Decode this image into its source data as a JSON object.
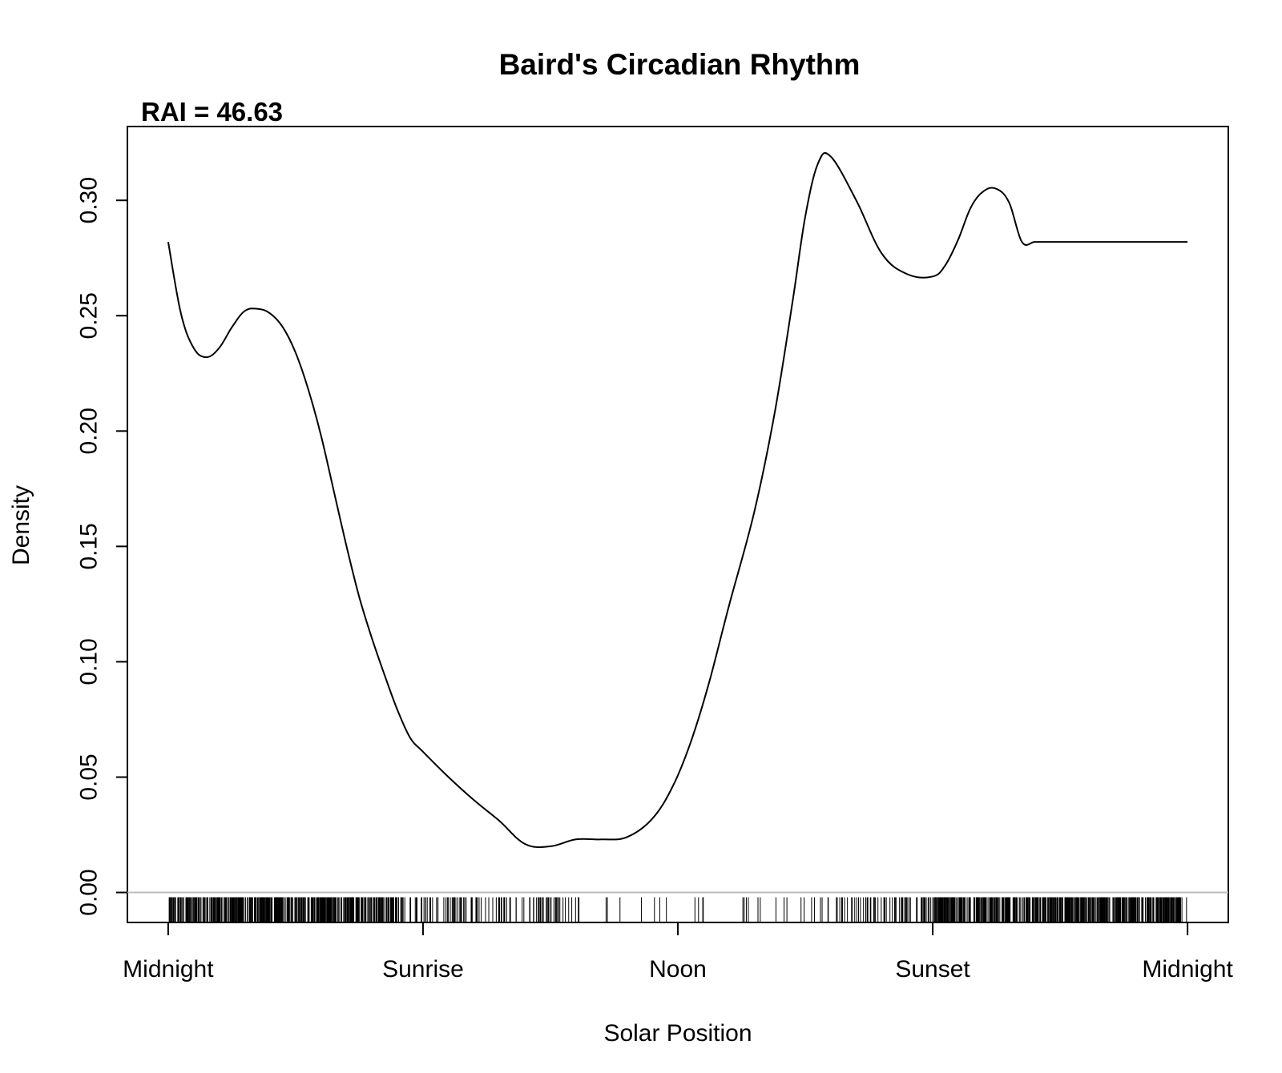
{
  "chart_data": {
    "type": "line",
    "title": "Baird's Circadian Rhythm",
    "subtitle": "RAI = 46.63",
    "xlabel": "Solar Position",
    "ylabel": "Density",
    "x_tick_labels": [
      "Midnight",
      "Sunrise",
      "Noon",
      "Sunset",
      "Midnight"
    ],
    "x_tick_positions": [
      0,
      1,
      2,
      3,
      4
    ],
    "xlim": [
      -0.16,
      4.16
    ],
    "ylim": [
      -0.013,
      0.332
    ],
    "y_ticks": [
      0.0,
      0.05,
      0.1,
      0.15,
      0.2,
      0.25,
      0.3
    ],
    "y_tick_labels": [
      "0.00",
      "0.05",
      "0.10",
      "0.15",
      "0.20",
      "0.25",
      "0.30"
    ],
    "grid": false,
    "baseline": 0.0,
    "baseline_color": "#bdbdbd",
    "line_color": "#000000",
    "series": [
      {
        "x": [
          0.0,
          0.05,
          0.1,
          0.15,
          0.2,
          0.25,
          0.3,
          0.35,
          0.4,
          0.45,
          0.5,
          0.55,
          0.6,
          0.65,
          0.7,
          0.75,
          0.8,
          0.85,
          0.9,
          0.95,
          1.0,
          1.1,
          1.2,
          1.3,
          1.4,
          1.5,
          1.6,
          1.7,
          1.8,
          1.9,
          1.98,
          2.05,
          2.12,
          2.2,
          2.3,
          2.38,
          2.45,
          2.5,
          2.55,
          2.6,
          2.7,
          2.8,
          2.9,
          3.0,
          3.05,
          3.1,
          3.15,
          3.2,
          3.25,
          3.3,
          3.35,
          3.4,
          3.45,
          3.5,
          3.55,
          3.6,
          3.65,
          3.7,
          3.75,
          3.8,
          3.85,
          3.9,
          3.95,
          4.0
        ],
        "y": [
          0.282,
          0.251,
          0.236,
          0.232,
          0.236,
          0.245,
          0.252,
          0.253,
          0.251,
          0.245,
          0.234,
          0.218,
          0.198,
          0.174,
          0.15,
          0.128,
          0.11,
          0.094,
          0.079,
          0.067,
          0.061,
          0.05,
          0.04,
          0.031,
          0.021,
          0.02,
          0.023,
          0.023,
          0.024,
          0.032,
          0.046,
          0.065,
          0.09,
          0.124,
          0.165,
          0.208,
          0.256,
          0.293,
          0.316,
          0.319,
          0.3,
          0.277,
          0.268,
          0.267,
          0.272,
          0.283,
          0.297,
          0.304,
          0.305,
          0.299,
          0.282,
          0.282,
          0.282,
          0.282,
          0.282,
          0.282,
          0.282,
          0.282,
          0.282,
          0.282,
          0.282,
          0.282,
          0.282,
          0.282
        ]
      }
    ],
    "rug": {
      "description_density_by_x": [
        {
          "from": 0.0,
          "to": 0.9,
          "density": "dense"
        },
        {
          "from": 0.9,
          "to": 1.6,
          "density": "medium"
        },
        {
          "from": 1.6,
          "to": 2.6,
          "density": "sparse"
        },
        {
          "from": 2.6,
          "to": 3.0,
          "density": "medium"
        },
        {
          "from": 3.0,
          "to": 4.0,
          "density": "dense"
        }
      ]
    }
  }
}
